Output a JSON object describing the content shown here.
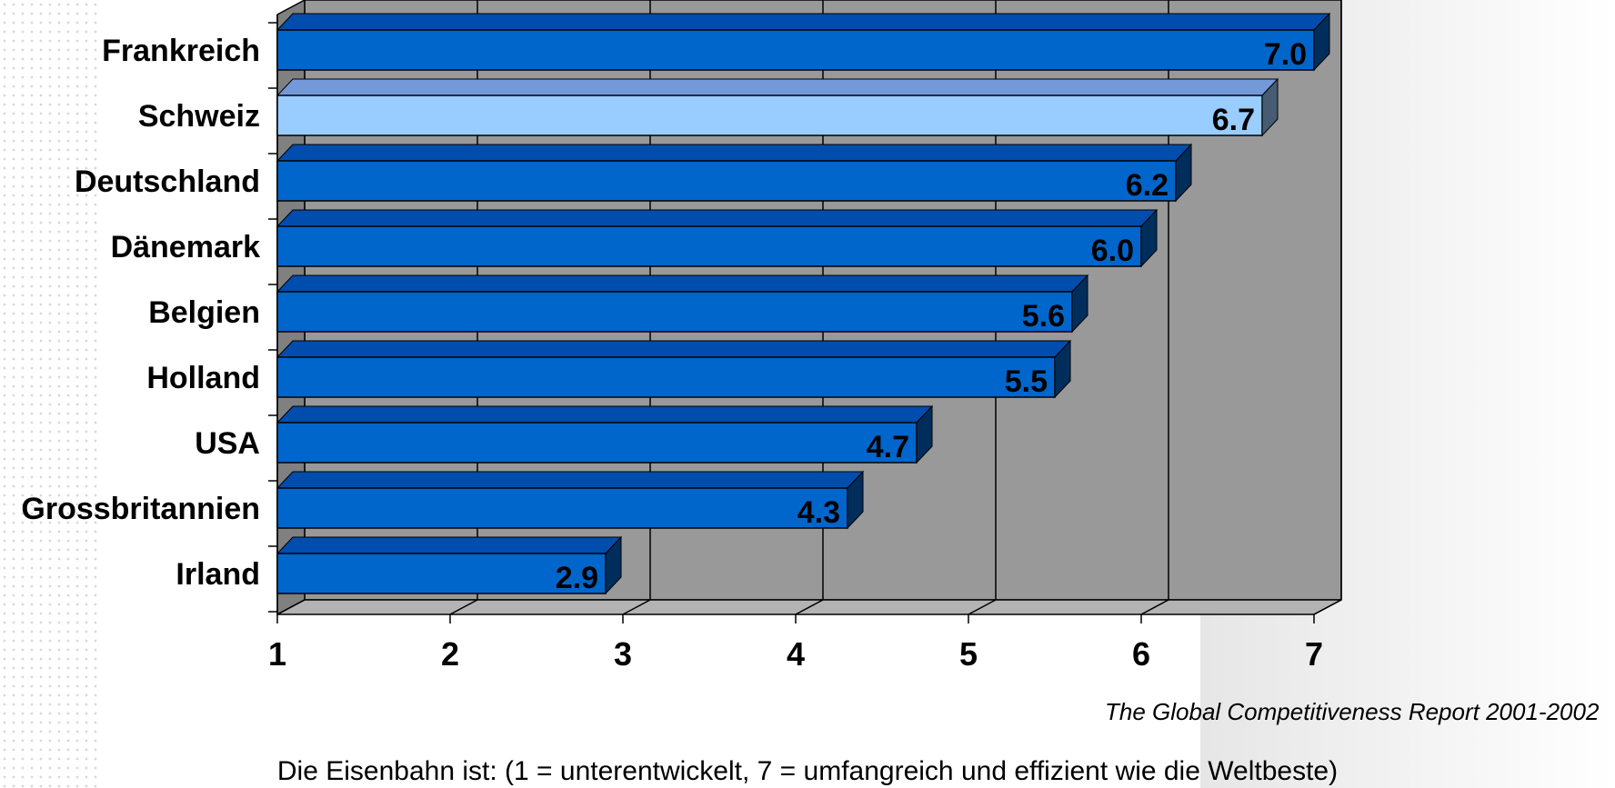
{
  "chart_data": {
    "type": "bar",
    "orientation": "horizontal",
    "categories": [
      "Frankreich",
      "Schweiz",
      "Deutschland",
      "Dänemark",
      "Belgien",
      "Holland",
      "USA",
      "Grossbritannien",
      "Irland"
    ],
    "values": [
      7.0,
      6.7,
      6.2,
      6.0,
      5.6,
      5.5,
      4.7,
      4.3,
      2.9
    ],
    "value_labels": [
      "7.0",
      "6.7",
      "6.2",
      "6.0",
      "5.6",
      "5.5",
      "4.7",
      "4.3",
      "2.9"
    ],
    "highlight_category": "Schweiz",
    "xlim": [
      1,
      7
    ],
    "xticks": [
      "1",
      "2",
      "3",
      "4",
      "5",
      "6",
      "7"
    ],
    "xlabel": "Die Eisenbahn ist: (1 = unterentwickelt, 7 = umfangreich und effizient wie die Weltbeste)",
    "source": "The Global Competitiveness Report 2001-2002",
    "grid": true,
    "three_d": true
  },
  "colors": {
    "bar": "#0066CC",
    "bar_highlight": "#99CCFF",
    "plot_background": "#999999",
    "floor": "#B3B3B3"
  }
}
